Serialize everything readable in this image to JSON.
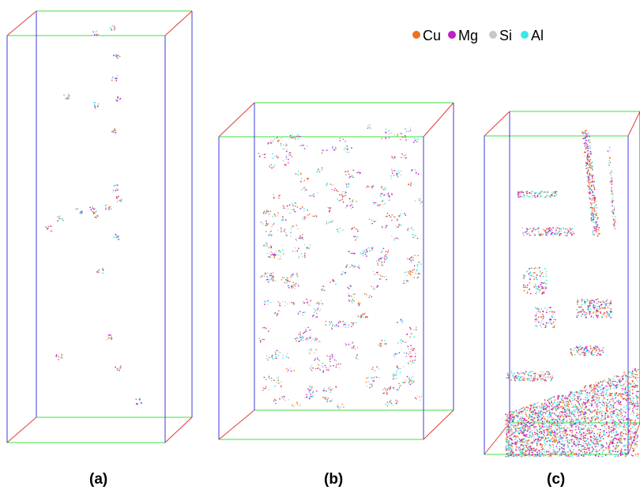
{
  "legend": {
    "items": [
      {
        "label": "Cu",
        "color": "#f07020"
      },
      {
        "label": "Mg",
        "color": "#c01ec8"
      },
      {
        "label": "Si",
        "color": "#c8c8c8"
      },
      {
        "label": "Al",
        "color": "#3ce8e8"
      }
    ]
  },
  "panels": [
    {
      "label": "(a)"
    },
    {
      "label": "(b)"
    },
    {
      "label": "(c)"
    }
  ],
  "box_edge_colors": {
    "x_edges": "#e03c3c",
    "y_edges": "#3ce03c",
    "z_edges": "#3c3cdc"
  }
}
